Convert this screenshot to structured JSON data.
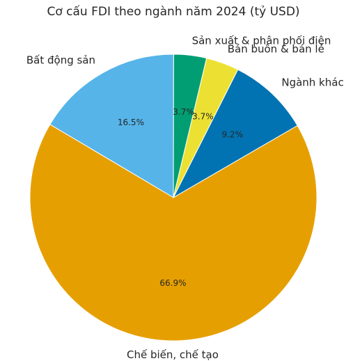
{
  "chart_data": {
    "type": "pie",
    "title": "Cơ cấu FDI theo ngành năm 2024 (tỷ USD)",
    "categories": [
      "Sản xuất & phân phối điện",
      "Bất động sản",
      "Chế biến, chế tạo",
      "Ngành khác",
      "Bán buôn & bán lẻ"
    ],
    "values": [
      3.7,
      16.5,
      66.9,
      9.2,
      3.7
    ],
    "labels": [
      "3.7%",
      "16.5%",
      "66.9%",
      "9.2%",
      "3.7%"
    ],
    "colors": [
      "#029e73",
      "#56b4e9",
      "#e69f00",
      "#0173b2",
      "#ece133"
    ]
  }
}
